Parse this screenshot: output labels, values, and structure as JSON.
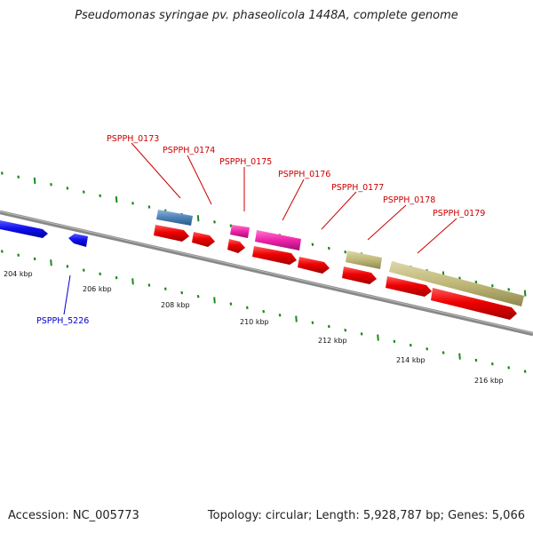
{
  "title": "Pseudomonas syringae pv. phaseolicola 1448A, complete genome",
  "footer": {
    "accession": "Accession: NC_005773",
    "summary": "Topology: circular; Length: 5,928,787 bp; Genes: 5,066"
  },
  "colors": {
    "backbone": "#888888",
    "tick": "#1a8a1a",
    "cds": "#ee0000",
    "cds_blue": "#1010ee",
    "gene_steelblue": "#4d82b5",
    "gene_magenta": "#ee22aa",
    "gene_khaki": "#bfb878",
    "label_red": "#cc0000",
    "label_blue": "#0000cc"
  },
  "kbp_labels": [
    "204 kbp",
    "206 kbp",
    "208 kbp",
    "210 kbp",
    "212 kbp",
    "214 kbp",
    "216 kbp"
  ],
  "gene_labels": {
    "top": [
      "PSPPH_0173",
      "PSPPH_0174",
      "PSPPH_0175",
      "PSPPH_0176",
      "PSPPH_0177",
      "PSPPH_0178",
      "PSPPH_0179"
    ],
    "bottom": [
      "PSPPH_5226"
    ]
  }
}
